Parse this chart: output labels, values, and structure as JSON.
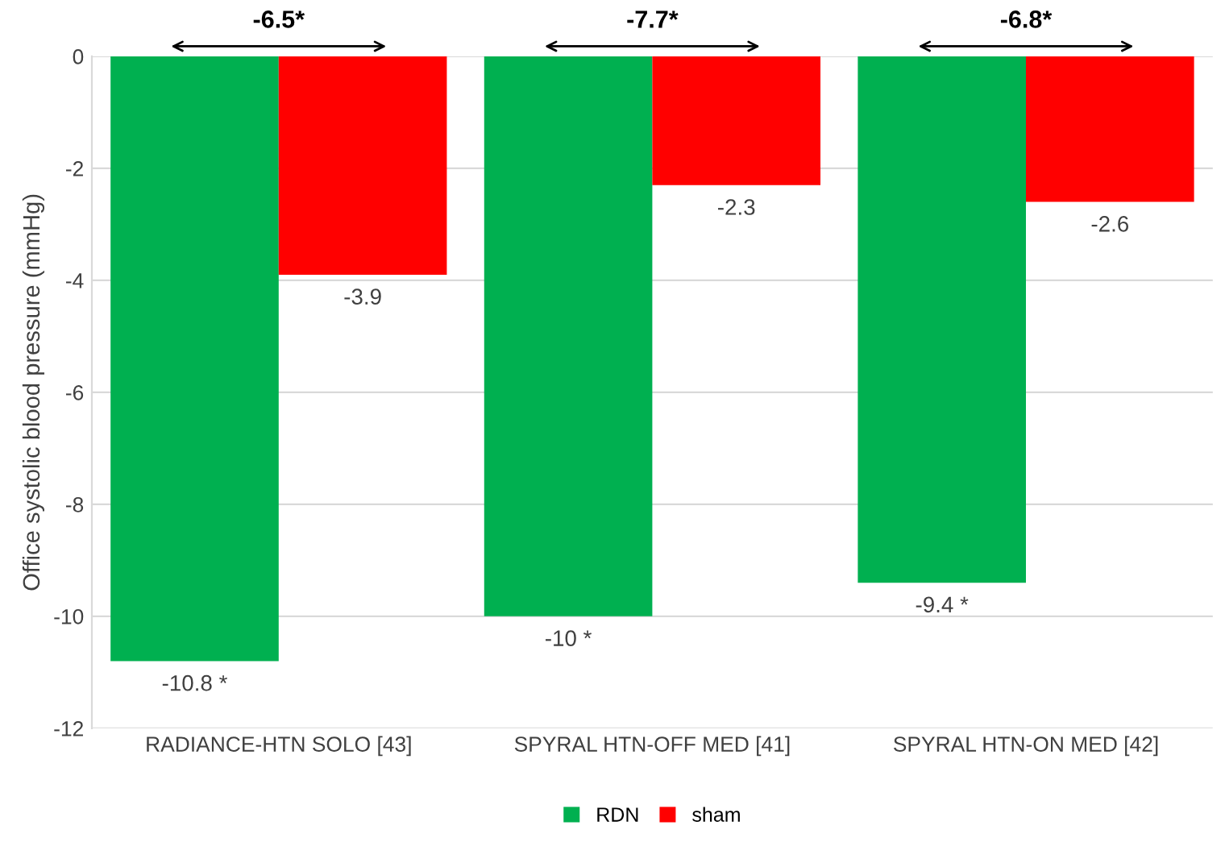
{
  "chart_data": {
    "type": "bar",
    "ylabel": "Office systolic blood pressure (mmHg)",
    "categories": [
      "RADIANCE-HTN SOLO [43]",
      "SPYRAL HTN-OFF MED [41]",
      "SPYRAL HTN-ON MED [42]"
    ],
    "series": [
      {
        "name": "RDN",
        "color": "#00b050",
        "values": [
          -10.8,
          -10,
          -9.4
        ],
        "value_labels": [
          "-10.8 *",
          "-10 *",
          "-9.4 *"
        ]
      },
      {
        "name": "sham",
        "color": "#ff0000",
        "values": [
          -3.9,
          -2.3,
          -2.6
        ],
        "value_labels": [
          "-3.9",
          "-2.3",
          "-2.6"
        ]
      }
    ],
    "ylim": [
      -12,
      0
    ],
    "yticks": [
      -12,
      -10,
      -8,
      -6,
      -4,
      -2,
      0
    ],
    "grid": "y",
    "legend": "bottom",
    "annotations": [
      "-6.5*",
      "-7.7*",
      "-6.8*"
    ]
  }
}
